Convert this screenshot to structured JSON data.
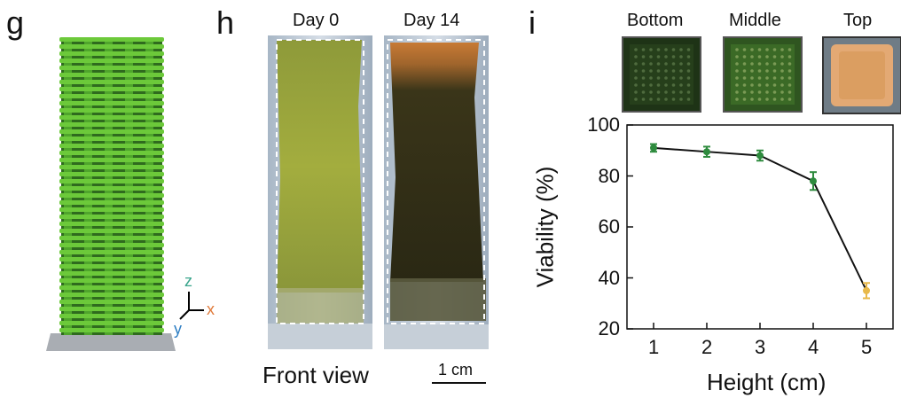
{
  "panels": {
    "g": {
      "letter": "g",
      "axes": {
        "z": "z",
        "x": "x",
        "y": "y"
      },
      "colors": {
        "scaffold": "#6cc93a",
        "scaffold_dark": "#2f6b1e",
        "z": "#3aa58c",
        "x": "#e07a3a",
        "y": "#2f7fc4",
        "base": "#a9adb3"
      }
    },
    "h": {
      "letter": "h",
      "photo_labels": [
        "Day 0",
        "Day 14"
      ],
      "caption": "Front view",
      "scale_bar": "1 cm",
      "colors": {
        "day0_gel": "#9aa53a",
        "day14_gel": "#2c2a14",
        "day14_top": "#c77a35",
        "frame": "#b9c5d2"
      }
    },
    "i": {
      "letter": "i",
      "inset_labels": [
        "Bottom",
        "Middle",
        "Top"
      ],
      "colors": {
        "bottom_inset": "#1e3316",
        "middle_inset": "#2f5520",
        "top_inset": "#e0a870",
        "point_green": "#2e8b3e",
        "point_yellow": "#e8b94a",
        "line": "#111111"
      }
    }
  },
  "chart_data": {
    "type": "line",
    "x": [
      1,
      2,
      3,
      4,
      5
    ],
    "xticks": [
      "1",
      "2",
      "3",
      "4",
      "5"
    ],
    "yticks": [
      "20",
      "40",
      "60",
      "80",
      "100"
    ],
    "xlabel": "Height (cm)",
    "ylabel": "Viability (%)",
    "xlim": [
      0.5,
      5.5
    ],
    "ylim": [
      20,
      100
    ],
    "series": [
      {
        "values": [
          91,
          89.5,
          88,
          78,
          35
        ],
        "errors": [
          1.5,
          2,
          2,
          3.5,
          3
        ],
        "point_colors": [
          "#2e8b3e",
          "#2e8b3e",
          "#2e8b3e",
          "#2e8b3e",
          "#e8b94a"
        ]
      }
    ]
  }
}
